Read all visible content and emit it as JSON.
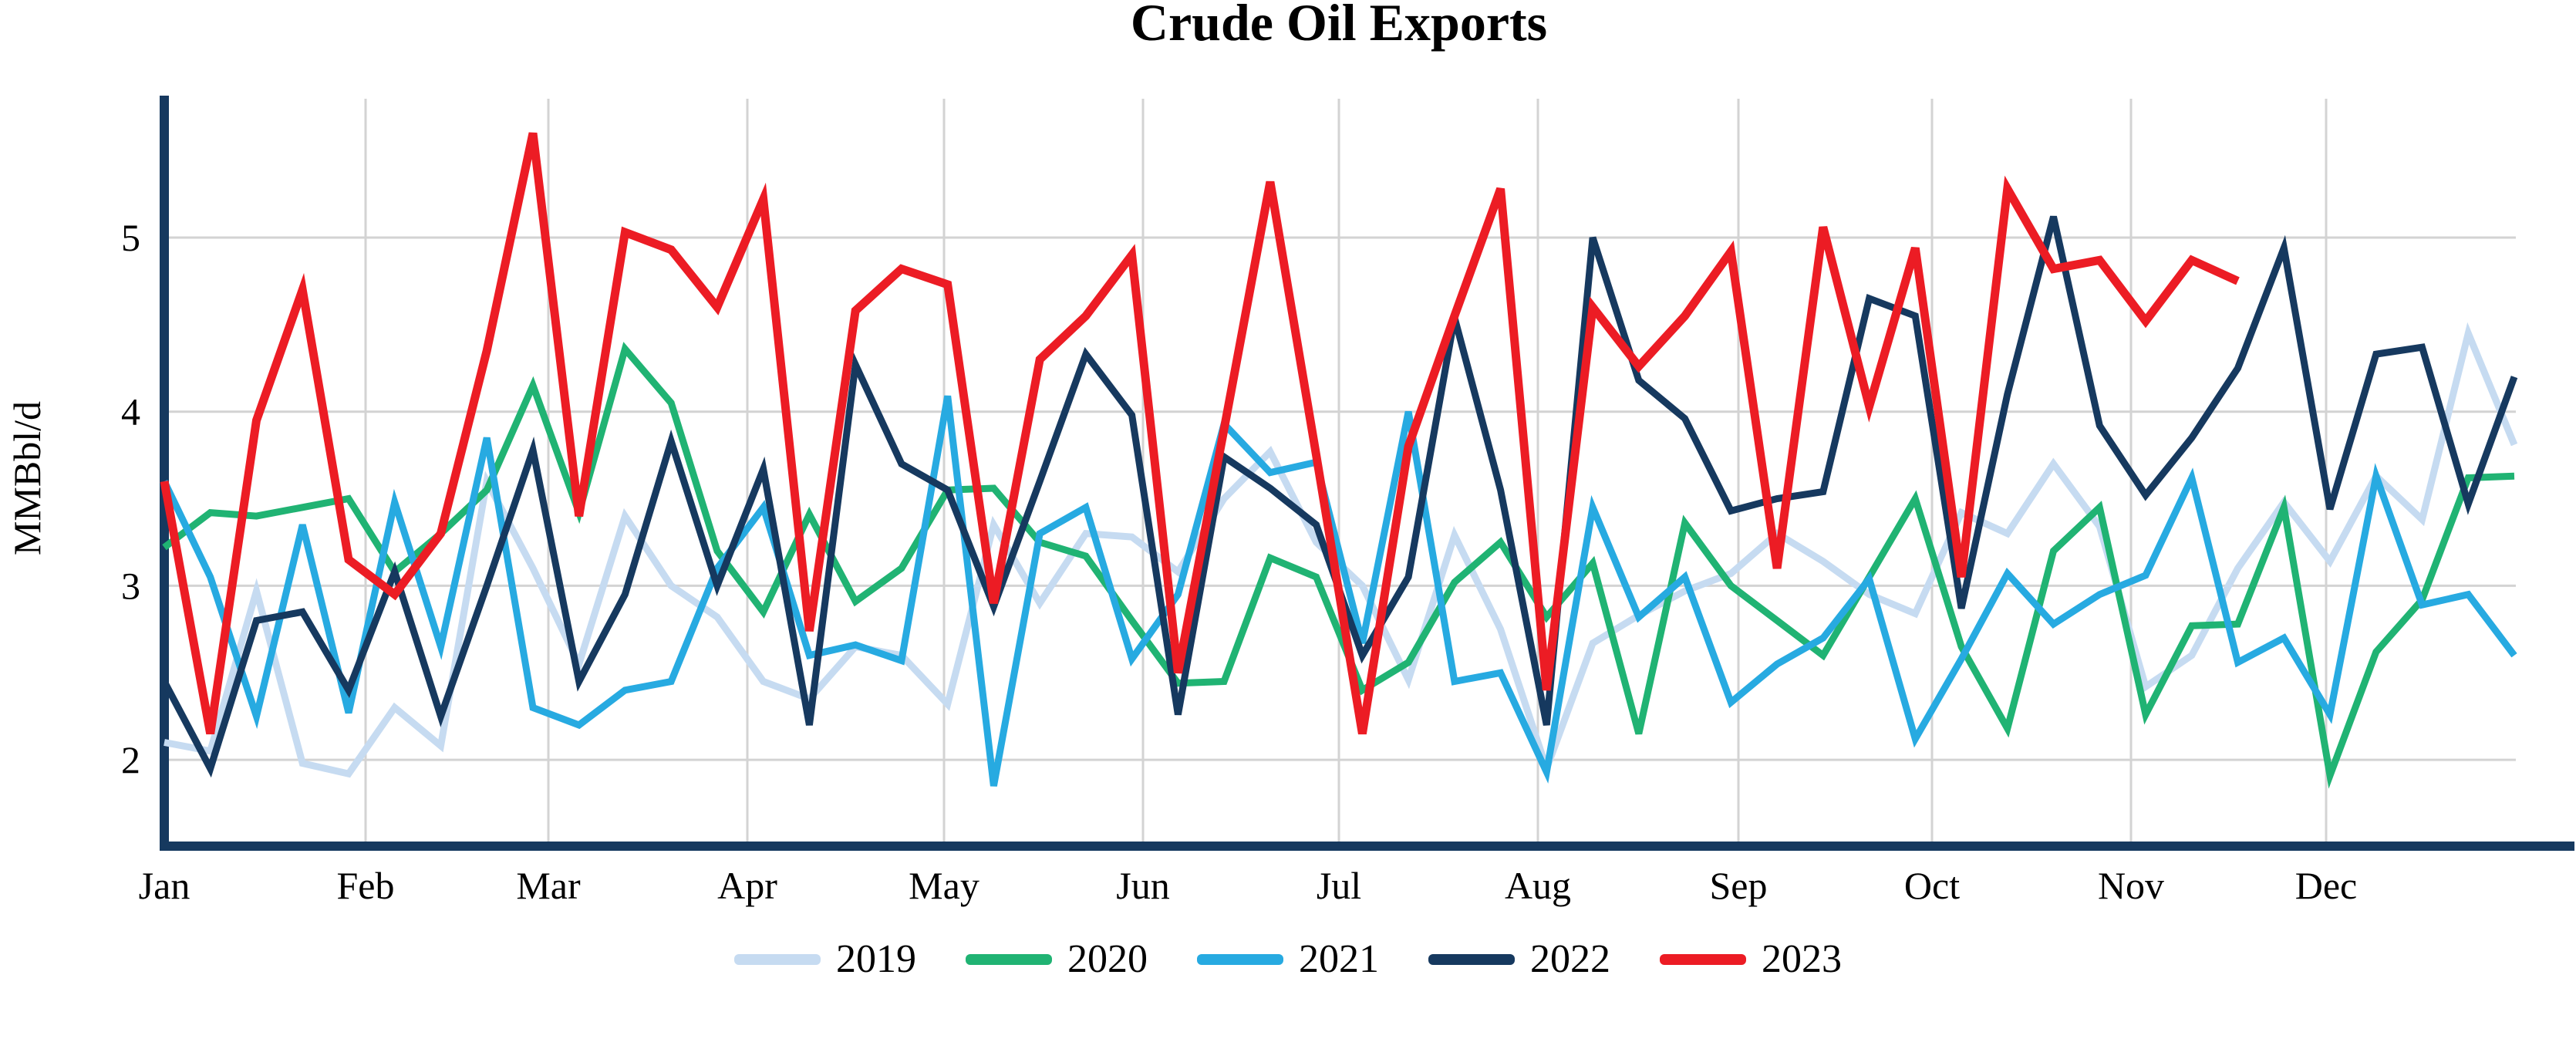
{
  "title": "Crude Oil Exports",
  "y_axis": {
    "label": "MMBbl/d"
  },
  "colors": {
    "background": "#ffffff",
    "grid": "#d3d3d3",
    "spine": "#16395f",
    "title_text": "#000000"
  },
  "chart_data": {
    "type": "line",
    "title": "Crude Oil Exports",
    "ylabel": "MMBbl/d",
    "xlabel": "",
    "x_unit": "weekly values, Jan through Dec",
    "categories": [
      "Jan",
      "Feb",
      "Mar",
      "Apr",
      "May",
      "Jun",
      "Jul",
      "Aug",
      "Sep",
      "Oct",
      "Nov",
      "Dec"
    ],
    "y_ticks": [
      2,
      3,
      4,
      5
    ],
    "ylim": [
      1.5,
      5.8
    ],
    "weeks": 52,
    "grid": true,
    "legend_position": "bottom",
    "series": [
      {
        "name": "2019",
        "color": "#c6dbf1",
        "values": [
          2.1,
          2.05,
          2.97,
          1.98,
          1.92,
          2.3,
          2.08,
          3.6,
          3.1,
          2.55,
          3.4,
          3.0,
          2.82,
          2.45,
          2.35,
          2.65,
          2.6,
          2.32,
          3.35,
          2.9,
          3.3,
          3.28,
          3.08,
          3.5,
          3.77,
          3.25,
          3.0,
          2.46,
          3.29,
          2.75,
          1.95,
          2.67,
          2.83,
          2.97,
          3.07,
          3.3,
          3.14,
          2.95,
          2.84,
          3.42,
          3.3,
          3.7,
          3.34,
          2.42,
          2.6,
          3.1,
          3.48,
          3.14,
          3.63,
          3.38,
          4.45,
          3.81
        ]
      },
      {
        "name": "2020",
        "color": "#20b373",
        "values": [
          3.22,
          3.42,
          3.4,
          3.45,
          3.5,
          3.08,
          3.3,
          3.55,
          4.15,
          3.42,
          4.36,
          4.05,
          3.2,
          2.85,
          3.41,
          2.91,
          3.1,
          3.55,
          3.56,
          3.25,
          3.17,
          2.8,
          2.44,
          2.45,
          3.16,
          3.05,
          2.4,
          2.56,
          3.02,
          3.25,
          2.82,
          3.13,
          2.15,
          3.36,
          3.0,
          2.8,
          2.6,
          3.05,
          3.5,
          2.65,
          2.18,
          3.2,
          3.45,
          2.26,
          2.77,
          2.78,
          3.45,
          1.91,
          2.62,
          2.92,
          3.62,
          3.63
        ]
      },
      {
        "name": "2021",
        "color": "#27aae1",
        "values": [
          3.6,
          3.05,
          2.25,
          3.35,
          2.27,
          3.48,
          2.65,
          3.85,
          2.3,
          2.2,
          2.4,
          2.45,
          3.1,
          3.45,
          2.6,
          2.66,
          2.57,
          4.09,
          1.85,
          3.3,
          3.45,
          2.58,
          2.95,
          3.93,
          3.65,
          3.71,
          2.67,
          4.0,
          2.45,
          2.5,
          1.93,
          3.45,
          2.82,
          3.05,
          2.33,
          2.55,
          2.7,
          3.04,
          2.12,
          2.58,
          3.07,
          2.78,
          2.95,
          3.06,
          3.62,
          2.56,
          2.7,
          2.26,
          3.63,
          2.89,
          2.95,
          2.6
        ]
      },
      {
        "name": "2022",
        "color": "#16395f",
        "values": [
          2.45,
          1.95,
          2.8,
          2.85,
          2.4,
          3.08,
          2.25,
          3.0,
          3.78,
          2.45,
          2.95,
          3.83,
          3.0,
          3.67,
          2.2,
          4.27,
          3.7,
          3.55,
          2.88,
          3.6,
          4.33,
          3.98,
          2.26,
          3.74,
          3.56,
          3.35,
          2.6,
          3.05,
          4.54,
          3.55,
          2.2,
          5.0,
          4.18,
          3.96,
          3.43,
          3.5,
          3.54,
          4.65,
          4.55,
          2.87,
          4.1,
          5.12,
          3.92,
          3.52,
          3.85,
          4.25,
          4.94,
          3.44,
          4.33,
          4.37,
          3.47,
          4.2
        ]
      },
      {
        "name": "2023",
        "color": "#ec1c24",
        "values": [
          3.6,
          2.15,
          3.95,
          4.7,
          3.15,
          2.95,
          3.3,
          4.35,
          5.6,
          3.4,
          5.03,
          4.93,
          4.6,
          5.22,
          2.74,
          4.58,
          4.82,
          4.73,
          2.9,
          4.3,
          4.55,
          4.9,
          2.5,
          3.9,
          5.32,
          3.75,
          2.15,
          3.8,
          4.55,
          5.28,
          2.4,
          4.6,
          4.26,
          4.55,
          4.92,
          3.1,
          5.06,
          4.03,
          4.94,
          3.05,
          5.28,
          4.82,
          4.87,
          4.52,
          4.87,
          4.75
        ]
      }
    ]
  }
}
